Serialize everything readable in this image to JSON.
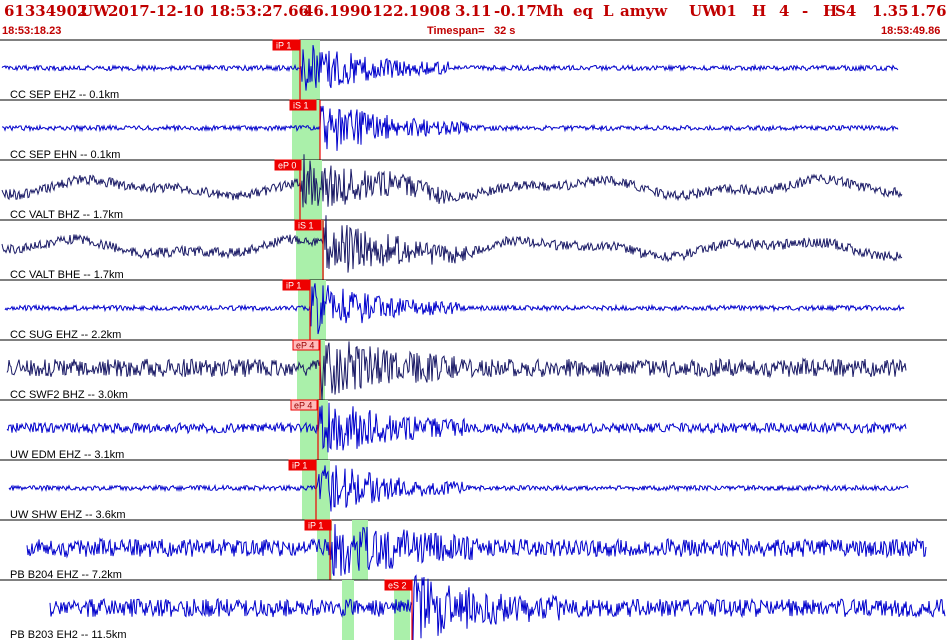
{
  "header": {
    "event_id": "61334902",
    "network": "UW",
    "datetime": "2017-12-10 18:53:27.66",
    "latitude": "46.1990",
    "longitude": "-122.1908",
    "magnitude": "3.11",
    "depth": "-0.17",
    "mag_type": "Mh",
    "event_type": "eq",
    "location_flag": "L",
    "author": "amyw",
    "net_code": "UW",
    "version": "01",
    "quality": "H",
    "count": "4",
    "dash": "-",
    "quality2": "H",
    "s_count": "S4",
    "rms": "1.35",
    "erh": "1.76"
  },
  "subheader": {
    "start_time": "18:53:18.23",
    "timespan_label": "Timespan=",
    "timespan_value": "32 s",
    "end_time": "18:53:49.86"
  },
  "colors": {
    "header_text": "#c00000",
    "trace_blue": "#0000cc",
    "trace_dark": "#1a1a66",
    "pick_box": "#ee0000",
    "pick_box_light": "#ffbbbb",
    "window_green": "#aaf0aa",
    "separator": "#000000"
  },
  "traces": [
    {
      "label": "CC SEP EHZ -- 0.1km",
      "pick": "iP 1",
      "pick_style": "solid",
      "color": "trace_blue",
      "amplitude": "low"
    },
    {
      "label": "CC SEP EHN -- 0.1km",
      "pick": "iS 1",
      "pick_style": "solid",
      "color": "trace_blue",
      "amplitude": "low"
    },
    {
      "label": "CC VALT BHZ -- 1.7km",
      "pick": "eP 0",
      "pick_style": "solid",
      "color": "trace_dark",
      "amplitude": "medium"
    },
    {
      "label": "CC VALT BHE -- 1.7km",
      "pick": "iS 1",
      "pick_style": "solid",
      "color": "trace_dark",
      "amplitude": "medium"
    },
    {
      "label": "CC SUG EHZ -- 2.2km",
      "pick": "iP 1",
      "pick_style": "solid",
      "color": "trace_blue",
      "amplitude": "low"
    },
    {
      "label": "CC SWF2 BHZ -- 3.0km",
      "pick": "eP 4",
      "pick_style": "light",
      "color": "trace_dark",
      "amplitude": "high"
    },
    {
      "label": "UW EDM EHZ -- 3.1km",
      "pick": "eP 4",
      "pick_style": "light",
      "color": "trace_blue",
      "amplitude": "medium"
    },
    {
      "label": "UW SHW EHZ -- 3.6km",
      "pick": "iP 1",
      "pick_style": "solid",
      "color": "trace_blue",
      "amplitude": "low"
    },
    {
      "label": "PB B204 EHZ -- 7.2km",
      "pick": "iP 1",
      "pick_style": "solid",
      "color": "trace_blue",
      "amplitude": "high"
    },
    {
      "label": "PB B203 EH2 -- 11.5km",
      "pick": "eS 2",
      "pick_style": "solid",
      "color": "trace_blue",
      "amplitude": "high"
    }
  ]
}
